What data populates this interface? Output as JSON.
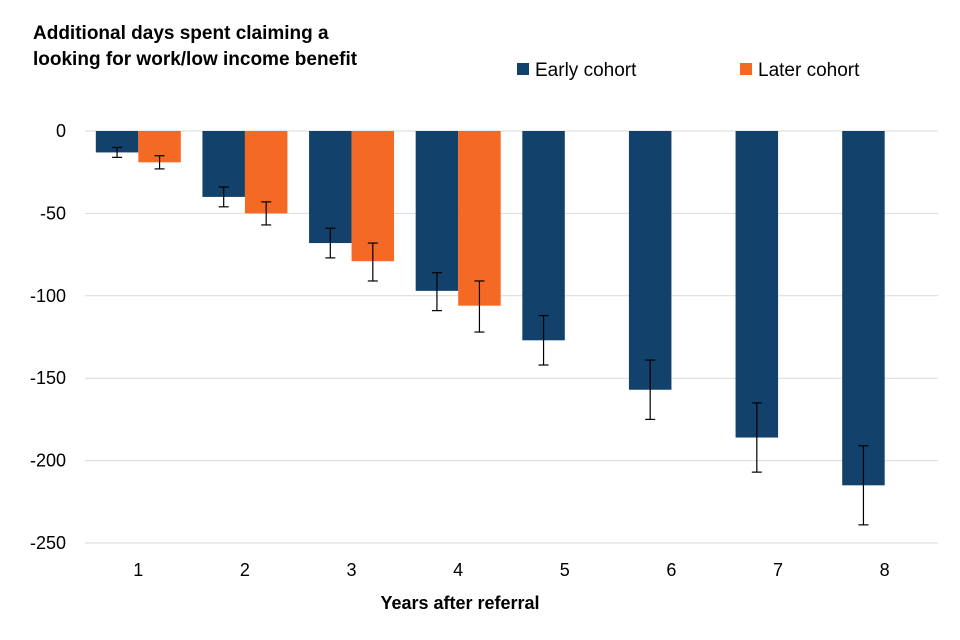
{
  "chart_data": {
    "type": "bar",
    "title_lines": [
      "Additional days spent claiming a",
      "looking for work/low income benefit"
    ],
    "xlabel": "Years after referral",
    "ylabel": "",
    "categories": [
      "1",
      "2",
      "3",
      "4",
      "5",
      "6",
      "7",
      "8"
    ],
    "ylim": [
      -250,
      0
    ],
    "yticks": [
      0,
      -50,
      -100,
      -150,
      -200,
      -250
    ],
    "ytick_labels": [
      "0",
      "-50",
      "-100",
      "-150",
      "-200",
      "-250"
    ],
    "grid": true,
    "legend_position": "top-right",
    "series": [
      {
        "name": "Early cohort",
        "color": "#12416b",
        "values": [
          -13,
          -40,
          -68,
          -97,
          -127,
          -157,
          -186,
          -215
        ],
        "error_low": [
          -16,
          -46,
          -77,
          -109,
          -142,
          -175,
          -207,
          -239
        ],
        "error_high": [
          -10,
          -34,
          -59,
          -86,
          -112,
          -139,
          -165,
          -191
        ]
      },
      {
        "name": "Later cohort",
        "color": "#f46a25",
        "values": [
          -19,
          -50,
          -79,
          -106,
          null,
          null,
          null,
          null
        ],
        "error_low": [
          -23,
          -57,
          -91,
          -122,
          null,
          null,
          null,
          null
        ],
        "error_high": [
          -15,
          -43,
          -68,
          -91,
          null,
          null,
          null,
          null
        ]
      }
    ]
  }
}
